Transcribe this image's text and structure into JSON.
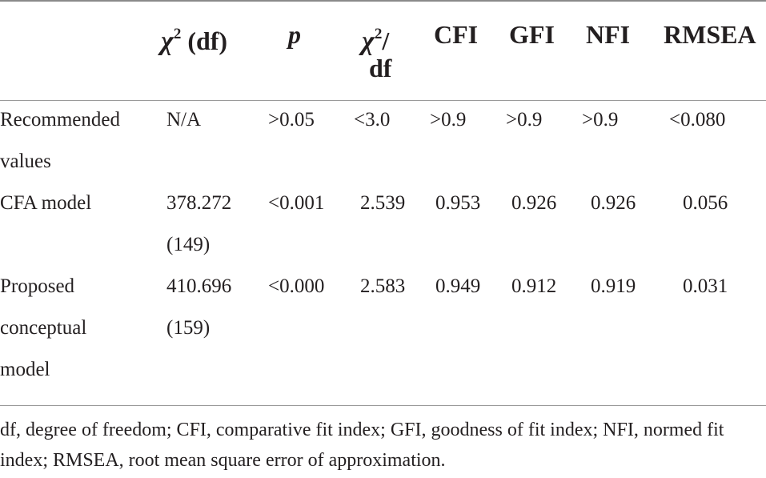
{
  "headers": {
    "chi_symbol": "χ",
    "chi_sup": "2",
    "chi_df": " (df)",
    "p": "p",
    "ratio_line1": "/",
    "ratio_line2": "df",
    "cfi": "CFI",
    "gfi": "GFI",
    "nfi": "NFI",
    "rmsea": "RMSEA"
  },
  "rows": [
    {
      "label_lines": [
        "Recommended",
        "values"
      ],
      "chi2_lines": [
        "N/A"
      ],
      "p": ">0.05",
      "ratio": "<3.0",
      "cfi": ">0.9",
      "gfi": ">0.9",
      "nfi": ">0.9",
      "rmsea": "<0.080"
    },
    {
      "label_lines": [
        "CFA model"
      ],
      "chi2_lines": [
        "378.272",
        "(149)"
      ],
      "p": "<0.001",
      "ratio": "2.539",
      "cfi": "0.953",
      "gfi": "0.926",
      "nfi": "0.926",
      "rmsea": "0.056"
    },
    {
      "label_lines": [
        "Proposed",
        "conceptual",
        "model"
      ],
      "chi2_lines": [
        "410.696",
        "(159)"
      ],
      "p": "<0.000",
      "ratio": "2.583",
      "cfi": "0.949",
      "gfi": "0.912",
      "nfi": "0.919",
      "rmsea": "0.031"
    }
  ],
  "footnote": "df, degree of freedom; CFI, comparative fit index; GFI, goodness of fit index; NFI, normed fit index; RMSEA, root mean square error of approximation."
}
